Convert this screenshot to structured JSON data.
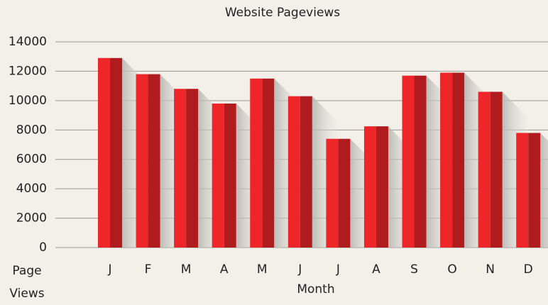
{
  "chart_data": {
    "type": "bar",
    "title": "Website Pageviews",
    "x_label": "Month",
    "y_label": "Page Views",
    "categories": [
      "J",
      "F",
      "M",
      "A",
      "M",
      "J",
      "J",
      "A",
      "S",
      "O",
      "N",
      "D"
    ],
    "values": [
      12900,
      11800,
      10800,
      9800,
      11500,
      10300,
      7400,
      8250,
      11700,
      11900,
      10600,
      7800
    ],
    "color": "#ee2629",
    "shade_color": "#b01b1e",
    "ylim": [
      0,
      14000
    ],
    "yticks": [
      0,
      2000,
      4000,
      6000,
      8000,
      10000,
      12000,
      14000
    ],
    "grid": true
  }
}
